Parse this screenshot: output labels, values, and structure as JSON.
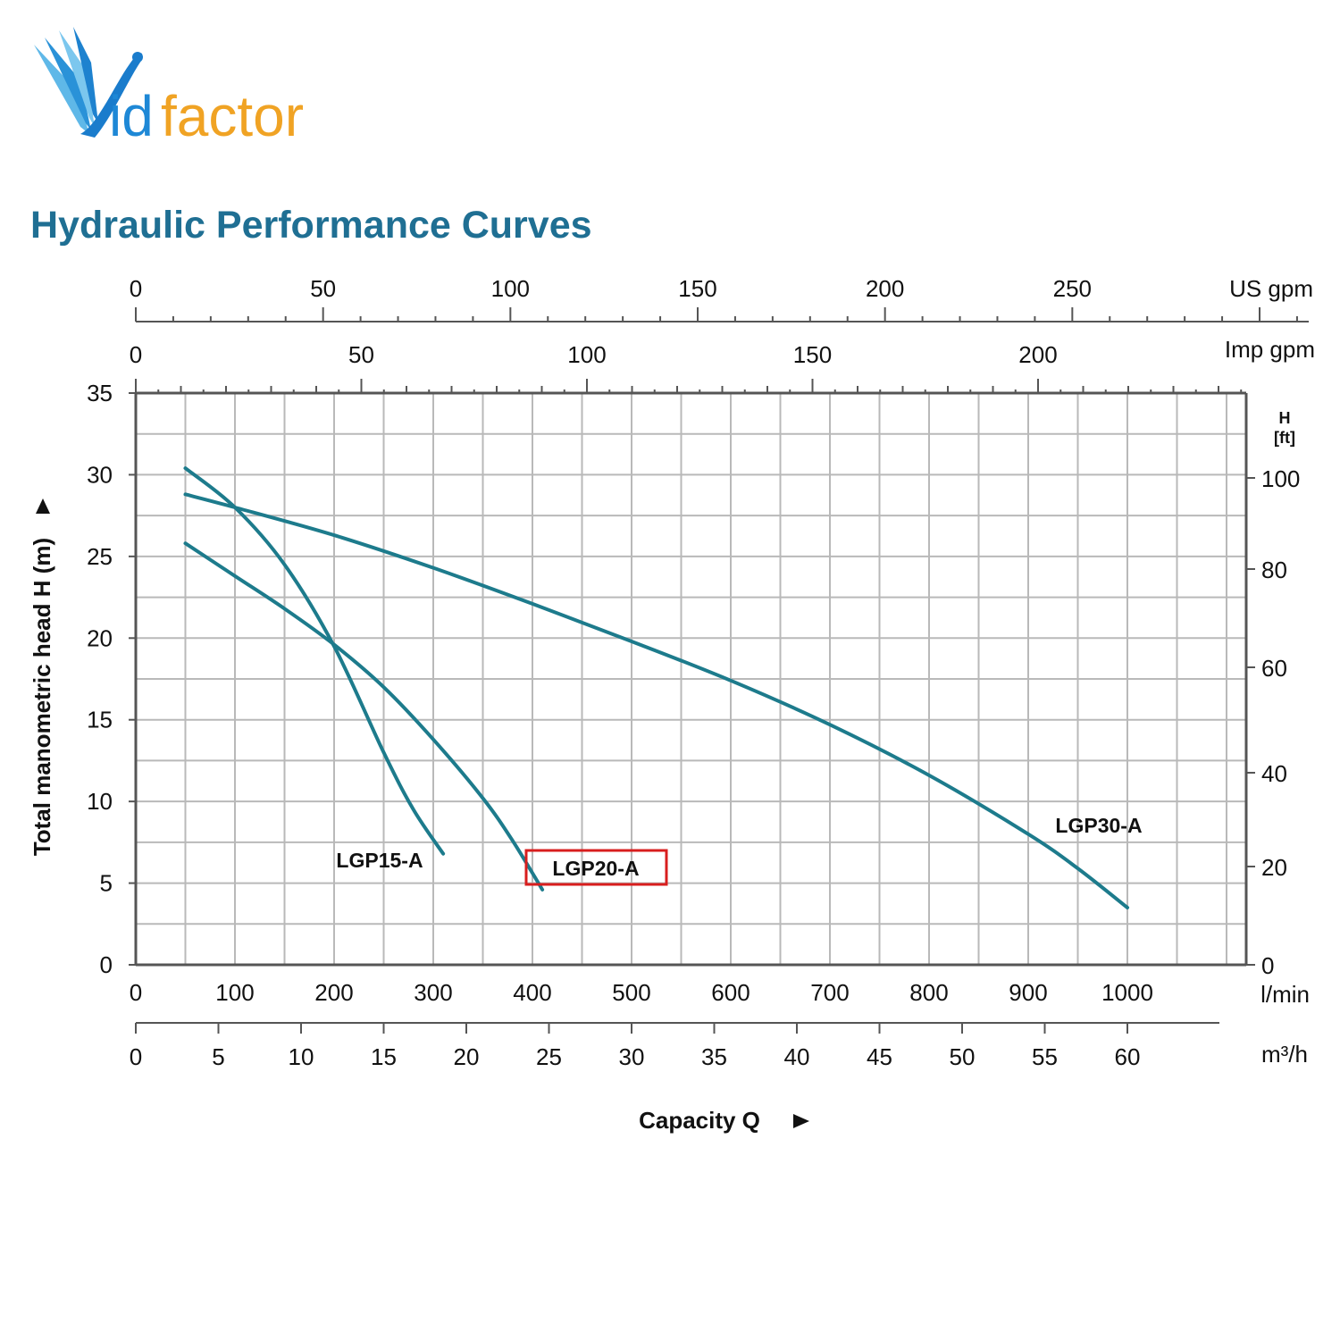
{
  "brand": {
    "name_first": "V",
    "name_rest_blue": "id",
    "name_rest_orange": "factor",
    "colors": {
      "blue": "#1e88d6",
      "orange": "#f0a324"
    }
  },
  "page_title": "Hydraulic Performance Curves",
  "chart_data": {
    "type": "line",
    "title": "Hydraulic Performance Curves",
    "xlabel": "Capacity Q",
    "ylabel": "Total manometric head H (m)",
    "x_unit": "l/min",
    "xlim": [
      0,
      1120
    ],
    "ylim": [
      0,
      35
    ],
    "grid": true,
    "line_color": "#1d7b8c",
    "x_ticks": [
      0,
      100,
      200,
      300,
      400,
      500,
      600,
      700,
      800,
      900,
      1000
    ],
    "y_ticks": [
      0,
      5,
      10,
      15,
      20,
      25,
      30,
      35
    ],
    "secondary_axes": {
      "us_gpm": {
        "label": "US gpm",
        "ticks": [
          0,
          50,
          100,
          150,
          200,
          250
        ]
      },
      "imp_gpm": {
        "label": "Imp gpm",
        "ticks": [
          0,
          50,
          100,
          150,
          200
        ]
      },
      "m3h": {
        "label": "m³/h",
        "ticks": [
          0,
          5,
          10,
          15,
          20,
          25,
          30,
          35,
          40,
          45,
          50,
          55,
          60
        ]
      },
      "h_ft": {
        "label_line1": "H",
        "label_line2": "[ft]",
        "ticks": [
          0,
          20,
          40,
          60,
          80,
          100
        ]
      }
    },
    "series": [
      {
        "name": "LGP15-A",
        "highlighted": false,
        "x": [
          50,
          100,
          150,
          200,
          250,
          280,
          310
        ],
        "y": [
          30.4,
          28.0,
          24.5,
          19.5,
          13.0,
          9.5,
          6.8
        ]
      },
      {
        "name": "LGP20-A",
        "highlighted": true,
        "highlight_color": "#d81e1e",
        "x": [
          50,
          100,
          150,
          200,
          250,
          300,
          350,
          380,
          410
        ],
        "y": [
          25.8,
          23.8,
          21.8,
          19.6,
          17.0,
          13.8,
          10.2,
          7.6,
          4.6
        ]
      },
      {
        "name": "LGP30-A",
        "highlighted": false,
        "x": [
          50,
          100,
          200,
          300,
          400,
          500,
          600,
          700,
          800,
          900,
          950,
          1000
        ],
        "y": [
          28.8,
          28.0,
          26.3,
          24.3,
          22.1,
          19.8,
          17.4,
          14.7,
          11.6,
          8.0,
          5.9,
          3.5
        ]
      }
    ]
  }
}
